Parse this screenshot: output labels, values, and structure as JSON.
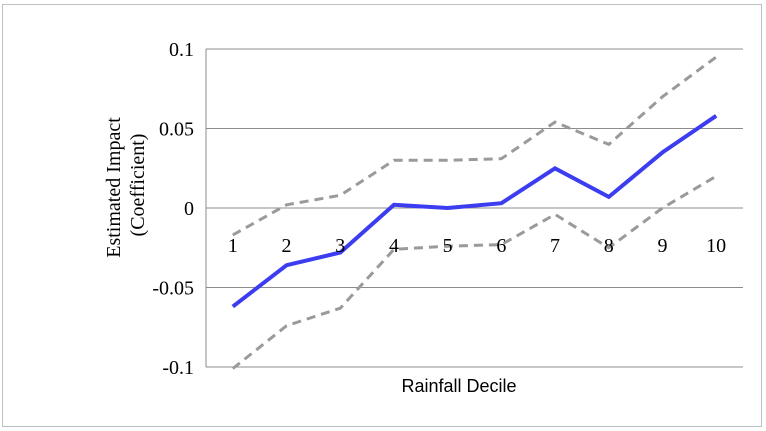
{
  "chart_data": {
    "type": "line",
    "title": "",
    "xlabel": "Rainfall Decile",
    "ylabel": [
      "Estimated Impact",
      "(Coefficient)"
    ],
    "categories": [
      "1",
      "2",
      "3",
      "4",
      "5",
      "6",
      "7",
      "8",
      "9",
      "10"
    ],
    "ylim": [
      -0.1,
      0.1
    ],
    "yticks": [
      0.1,
      0.05,
      0,
      -0.05,
      -0.1
    ],
    "ytick_labels": [
      "0.1",
      "0.05",
      "0",
      "-0.05",
      "-0.1"
    ],
    "grid": true,
    "legend": "none",
    "series": [
      {
        "color": "#3c3cf0",
        "style": "solid",
        "values": [
          -0.062,
          -0.036,
          -0.028,
          0.002,
          0.0,
          0.003,
          0.025,
          0.007,
          0.035,
          0.058
        ]
      },
      {
        "color": "#9a9a9a",
        "style": "dashed",
        "values": [
          -0.017,
          0.002,
          0.008,
          0.03,
          0.03,
          0.031,
          0.054,
          0.04,
          0.07,
          0.095
        ]
      },
      {
        "color": "#9a9a9a",
        "style": "dashed",
        "values": [
          -0.101,
          -0.074,
          -0.063,
          -0.026,
          -0.024,
          -0.023,
          -0.004,
          -0.025,
          0.0,
          0.02
        ]
      }
    ]
  }
}
